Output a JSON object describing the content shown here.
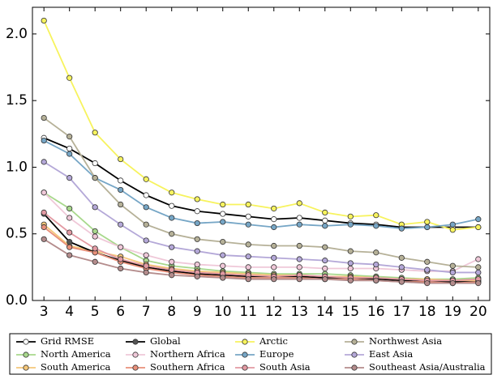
{
  "chart_data": {
    "type": "line",
    "x": [
      3,
      4,
      5,
      6,
      7,
      8,
      9,
      10,
      11,
      12,
      13,
      14,
      15,
      16,
      17,
      18,
      19,
      20
    ],
    "xlim": [
      2.55,
      20.45
    ],
    "xticks": [
      3,
      4,
      5,
      6,
      7,
      8,
      9,
      10,
      11,
      12,
      13,
      14,
      15,
      16,
      17,
      18,
      19,
      20
    ],
    "ylim": [
      0,
      2.2
    ],
    "yticks": [
      {
        "value": 0,
        "label": "0.0"
      },
      0.5,
      {
        "value": 1,
        "label": "1.0"
      },
      1.5,
      {
        "value": 2,
        "label": "2.0"
      }
    ],
    "legend": "bottom",
    "series": [
      {
        "name": "Grid RMSE",
        "color": "#000000",
        "marker_color": "#ffffff",
        "values": [
          1.22,
          1.14,
          1.03,
          0.9,
          0.79,
          0.71,
          0.67,
          0.65,
          0.63,
          0.61,
          0.62,
          0.6,
          0.58,
          0.57,
          0.55,
          0.55,
          0.55,
          0.55
        ]
      },
      {
        "name": "North America",
        "color": "#a8d88c",
        "marker_color": "#a8d88c",
        "values": [
          0.81,
          0.69,
          0.52,
          0.4,
          0.3,
          0.26,
          0.24,
          0.22,
          0.21,
          0.2,
          0.2,
          0.2,
          0.19,
          0.18,
          0.17,
          0.16,
          0.16,
          0.17
        ]
      },
      {
        "name": "South America",
        "color": "#f5c77a",
        "marker_color": "#f5c77a",
        "values": [
          0.57,
          0.41,
          0.37,
          0.33,
          0.27,
          0.24,
          0.22,
          0.21,
          0.2,
          0.19,
          0.19,
          0.18,
          0.18,
          0.17,
          0.16,
          0.16,
          0.15,
          0.15
        ]
      },
      {
        "name": "Global",
        "color": "#000000",
        "marker_color": "#555555",
        "values": [
          0.65,
          0.44,
          0.36,
          0.3,
          0.25,
          0.22,
          0.2,
          0.19,
          0.18,
          0.18,
          0.18,
          0.17,
          0.17,
          0.16,
          0.15,
          0.14,
          0.14,
          0.14
        ]
      },
      {
        "name": "Northern Africa",
        "color": "#efc8d8",
        "marker_color": "#efc8d8",
        "values": [
          0.81,
          0.62,
          0.48,
          0.4,
          0.34,
          0.29,
          0.27,
          0.26,
          0.25,
          0.25,
          0.25,
          0.24,
          0.24,
          0.24,
          0.23,
          0.22,
          0.22,
          0.31
        ]
      },
      {
        "name": "Southern Africa",
        "color": "#e8907a",
        "marker_color": "#e8907a",
        "values": [
          0.55,
          0.4,
          0.36,
          0.29,
          0.24,
          0.21,
          0.19,
          0.18,
          0.17,
          0.17,
          0.17,
          0.16,
          0.16,
          0.15,
          0.14,
          0.14,
          0.13,
          0.14
        ]
      },
      {
        "name": "Arctic",
        "color": "#f7f35e",
        "marker_color": "#f7f35e",
        "values": [
          2.1,
          1.67,
          1.26,
          1.06,
          0.91,
          0.81,
          0.76,
          0.72,
          0.72,
          0.69,
          0.73,
          0.66,
          0.63,
          0.64,
          0.57,
          0.59,
          0.53,
          0.55
        ]
      },
      {
        "name": "Europe",
        "color": "#76a6c6",
        "marker_color": "#76a6c6",
        "values": [
          1.2,
          1.1,
          0.92,
          0.83,
          0.7,
          0.62,
          0.58,
          0.59,
          0.57,
          0.55,
          0.57,
          0.56,
          0.57,
          0.56,
          0.54,
          0.55,
          0.57,
          0.61
        ]
      },
      {
        "name": "South Asia",
        "color": "#e39aa3",
        "marker_color": "#e39aa3",
        "values": [
          0.66,
          0.51,
          0.39,
          0.31,
          0.26,
          0.23,
          0.21,
          0.2,
          0.19,
          0.18,
          0.19,
          0.18,
          0.17,
          0.17,
          0.16,
          0.15,
          0.15,
          0.16
        ]
      },
      {
        "name": "Northwest Asia",
        "color": "#b6b198",
        "marker_color": "#b6b198",
        "values": [
          1.37,
          1.23,
          0.92,
          0.72,
          0.57,
          0.5,
          0.46,
          0.44,
          0.42,
          0.41,
          0.41,
          0.4,
          0.37,
          0.36,
          0.32,
          0.29,
          0.26,
          0.25
        ]
      },
      {
        "name": "East Asia",
        "color": "#b4a8d8",
        "marker_color": "#b4a8d8",
        "values": [
          1.04,
          0.92,
          0.7,
          0.57,
          0.45,
          0.4,
          0.37,
          0.34,
          0.33,
          0.32,
          0.31,
          0.3,
          0.28,
          0.27,
          0.25,
          0.23,
          0.21,
          0.21
        ]
      },
      {
        "name": "Southeast Asia/Australia",
        "color": "#b48c8c",
        "marker_color": "#b48c8c",
        "values": [
          0.46,
          0.34,
          0.29,
          0.24,
          0.21,
          0.19,
          0.18,
          0.17,
          0.16,
          0.16,
          0.16,
          0.16,
          0.15,
          0.15,
          0.14,
          0.13,
          0.13,
          0.13
        ]
      }
    ]
  }
}
